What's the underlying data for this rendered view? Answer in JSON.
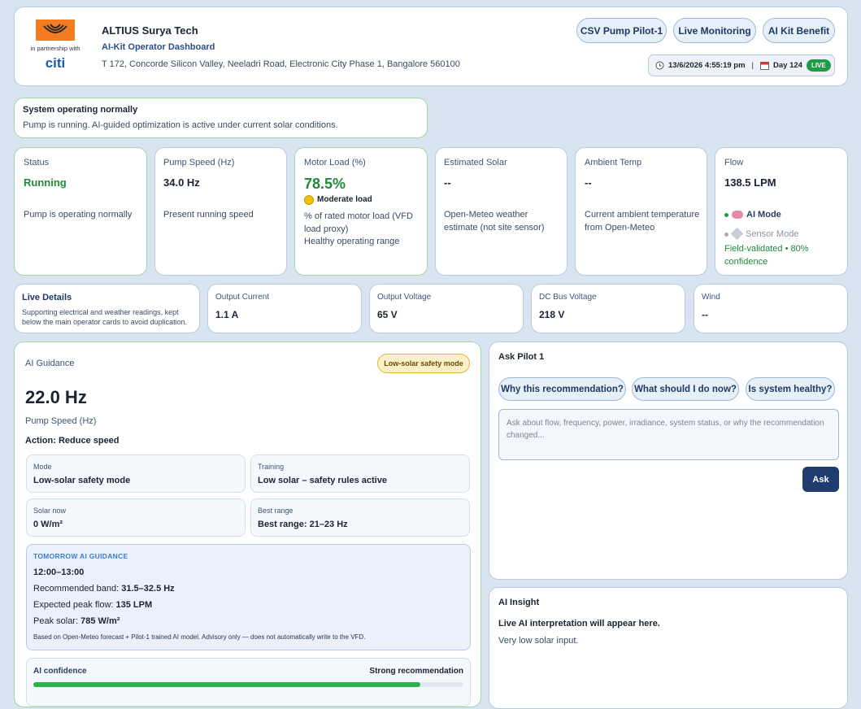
{
  "header": {
    "logo_caption": "in partnership with",
    "partner": "citi",
    "company": "ALTIUS Surya Tech",
    "subtitle": "AI-Kit Operator Dashboard",
    "address": "T 172, Concorde Silicon Valley, Neeladri Road, Electronic City Phase 1, Bangalore 560100",
    "nav": [
      "CSV Pump Pilot-1",
      "Live Monitoring",
      "AI Kit Benefit"
    ],
    "datetime": "13/6/2026 4:55:19 pm",
    "separator": "|",
    "day": "Day 124",
    "live": "LIVE"
  },
  "alert": {
    "title": "System operating normally",
    "message": "Pump is running. AI-guided optimization is active under current solar conditions."
  },
  "cards": [
    {
      "label": "Status",
      "value": "Running",
      "note": "Pump is operating normally"
    },
    {
      "label": "Pump Speed (Hz)",
      "value": "34.0 Hz",
      "note": "Present running speed"
    },
    {
      "label": "Motor Load (%)",
      "value": "78.5%",
      "badge": "Moderate load",
      "note": "% of rated motor load (VFD load proxy)",
      "note2": "Healthy operating range"
    },
    {
      "label": "Estimated Solar",
      "value": "--",
      "note": "Open-Meteo weather estimate (not site sensor)"
    },
    {
      "label": "Ambient Temp",
      "value": "--",
      "note": "Current ambient temperature from Open-Meteo"
    },
    {
      "label": "Flow",
      "value": "138.5 LPM",
      "modes": [
        "AI Mode",
        "Sensor Mode"
      ],
      "note": "Field-validated • 80% confidence"
    }
  ],
  "live_details": {
    "title": "Live Details",
    "description": "Supporting electrical and weather readings, kept below the main operator cards to avoid duplication.",
    "items": [
      {
        "label": "Output Current",
        "value": "1.1 A"
      },
      {
        "label": "Output Voltage",
        "value": "65 V"
      },
      {
        "label": "DC Bus Voltage",
        "value": "218 V"
      },
      {
        "label": "Wind",
        "value": "--"
      }
    ]
  },
  "guidance": {
    "label": "AI Guidance",
    "badge": "Low-solar safety mode",
    "value": "22.0 Hz",
    "value_label": "Pump Speed (Hz)",
    "action": "Action: Reduce speed",
    "tiles": [
      {
        "label": "Mode",
        "value": "Low-solar safety mode"
      },
      {
        "label": "Training",
        "value": "Low solar – safety rules active"
      },
      {
        "label": "Solar now",
        "value": "0 W/m²"
      },
      {
        "label": "Best range",
        "value": "Best range: 21–23 Hz"
      }
    ],
    "tomorrow": {
      "title": "TOMORROW AI GUIDANCE",
      "time": "12:00–13:00",
      "lines": [
        {
          "label": "Recommended band:",
          "value": "31.5–32.5 Hz"
        },
        {
          "label": "Expected peak flow:",
          "value": "135 LPM"
        },
        {
          "label": "Peak solar:",
          "value": "785 W/m²"
        }
      ],
      "footnote": "Based on Open-Meteo forecast + Pilot-1 trained AI model. Advisory only — does not automatically write to the VFD."
    },
    "confidence": {
      "label": "AI confidence",
      "level": "Strong recommendation",
      "percent": 90
    }
  },
  "ask": {
    "title": "Ask Pilot 1",
    "suggestions": [
      "Why this recommendation?",
      "What should I do now?",
      "Is system healthy?"
    ],
    "placeholder": "Ask about flow, frequency, power, irradiance, system status, or why the recommendation changed...",
    "button": "Ask"
  },
  "insight": {
    "title": "AI Insight",
    "headline": "Live AI interpretation will appear here.",
    "text": "Very low solar input."
  }
}
